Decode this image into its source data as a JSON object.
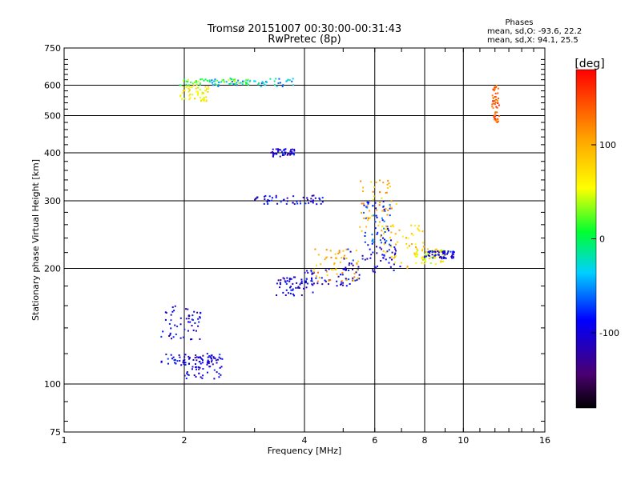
{
  "chart_data": {
    "type": "scatter",
    "title": "Tromsø 20151007 00:30:00-00:31:43",
    "subtitle": "RwPretec (8p)",
    "xlabel": "Frequency [MHz]",
    "ylabel": "Stationary phase Virtual Height [km]",
    "x_scale": "log",
    "y_scale": "log",
    "xlim": [
      1,
      16
    ],
    "ylim": [
      75,
      750
    ],
    "x_ticks": [
      1,
      2,
      4,
      6,
      8,
      10,
      16
    ],
    "x_grid": [
      2,
      4,
      6,
      8,
      10
    ],
    "y_ticks": [
      75,
      100,
      200,
      300,
      400,
      500,
      600,
      750
    ],
    "y_grid": [
      100,
      200,
      300,
      400,
      500,
      600
    ],
    "grid": true,
    "stats": {
      "header": "Phases",
      "line1": "mean, sd,O: -93.6, 22.2",
      "line2": "mean, sd,X:  94.1, 25.5"
    },
    "colorbar": {
      "label": "[deg]",
      "min": -180,
      "max": 180,
      "ticks": [
        100,
        0,
        -100
      ],
      "colormap": "rainbow (black-purple-blue-cyan-green-yellow-orange-red)"
    },
    "clusters": [
      {
        "x": [
          1.75,
          2.45
        ],
        "y": [
          112,
          120
        ],
        "phase": -100
      },
      {
        "x": [
          1.75,
          2.2
        ],
        "y": [
          130,
          160
        ],
        "phase": -100
      },
      {
        "x": [
          2.0,
          2.5
        ],
        "y": [
          103,
          120
        ],
        "phase": -100
      },
      {
        "x": [
          1.95,
          2.3
        ],
        "y": [
          545,
          600
        ],
        "phase": 60
      },
      {
        "x": [
          1.95,
          3.0
        ],
        "y": [
          600,
          625
        ],
        "phase": 20
      },
      {
        "x": [
          2.3,
          3.8
        ],
        "y": [
          595,
          625
        ],
        "phase": -40
      },
      {
        "x": [
          3.3,
          3.8
        ],
        "y": [
          390,
          410
        ],
        "phase": -100
      },
      {
        "x": [
          3.0,
          4.5
        ],
        "y": [
          294,
          310
        ],
        "phase": -100
      },
      {
        "x": [
          3.4,
          4.2
        ],
        "y": [
          170,
          190
        ],
        "phase": -100
      },
      {
        "x": [
          4.0,
          5.5
        ],
        "y": [
          180,
          200
        ],
        "phase": -100
      },
      {
        "x": [
          4.2,
          5.5
        ],
        "y": [
          185,
          225
        ],
        "phase": 100
      },
      {
        "x": [
          5.0,
          7.0
        ],
        "y": [
          195,
          230
        ],
        "phase": -100
      },
      {
        "x": [
          5.5,
          6.8
        ],
        "y": [
          250,
          340
        ],
        "phase": 100
      },
      {
        "x": [
          5.6,
          6.6
        ],
        "y": [
          230,
          300
        ],
        "phase": -80
      },
      {
        "x": [
          6.2,
          8.0
        ],
        "y": [
          200,
          260
        ],
        "phase": 80
      },
      {
        "x": [
          7.5,
          9.0
        ],
        "y": [
          205,
          225
        ],
        "phase": 60
      },
      {
        "x": [
          8.0,
          9.5
        ],
        "y": [
          212,
          222
        ],
        "phase": -100
      },
      {
        "x": [
          11.8,
          12.3
        ],
        "y": [
          480,
          600
        ],
        "phase": 140
      }
    ]
  }
}
